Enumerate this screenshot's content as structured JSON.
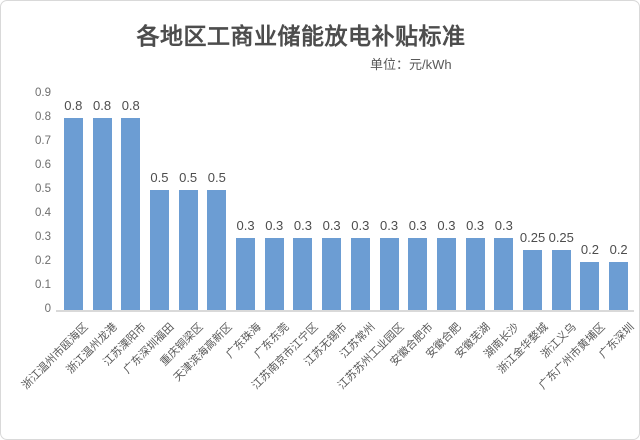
{
  "page": {
    "title": "各地区工商业储能放电补贴标准",
    "unit_label": "单位：元/kWh"
  },
  "chart_data": {
    "type": "bar",
    "title": "各地区工商业储能放电补贴标准",
    "subtitle": "单位：元/kWh",
    "categories": [
      "浙江温州市瓯海区",
      "浙江温州龙港",
      "江苏溧阳市",
      "广东深圳福田",
      "重庆铜梁区",
      "天津滨海高新区",
      "广东珠海",
      "广东东莞",
      "江苏南京市江宁区",
      "江苏无锡市",
      "江苏常州",
      "江苏苏州工业园区",
      "安徽合肥市",
      "安徽合肥",
      "安徽芜湖",
      "湖南长沙",
      "浙江金华婺城",
      "浙江义乌",
      "广东广州市黄埔区",
      "广东深圳"
    ],
    "values": [
      0.8,
      0.8,
      0.8,
      0.5,
      0.5,
      0.5,
      0.3,
      0.3,
      0.3,
      0.3,
      0.3,
      0.3,
      0.3,
      0.3,
      0.3,
      0.3,
      0.25,
      0.25,
      0.2,
      0.2
    ],
    "value_labels": [
      "0.8",
      "0.8",
      "0.8",
      "0.5",
      "0.5",
      "0.5",
      "0.3",
      "0.3",
      "0.3",
      "0.3",
      "0.3",
      "0.3",
      "0.3",
      "0.3",
      "0.3",
      "0.3",
      "0.25",
      "0.25",
      "0.2",
      "0.2"
    ],
    "xlabel": "",
    "ylabel": "",
    "ylim": [
      0,
      0.9
    ],
    "y_ticks": [
      "0",
      "0.1",
      "0.2",
      "0.3",
      "0.4",
      "0.5",
      "0.6",
      "0.7",
      "0.8",
      "0.9"
    ],
    "grid": false,
    "legend": "none",
    "bar_color": "#6c9dd3",
    "axis_line_color": "#d9d9d9",
    "title_color": "#4d4d4d",
    "value_label_color": "#4d4d4d",
    "tick_label_color": "#6e6e6e",
    "category_label_color": "#595959"
  }
}
